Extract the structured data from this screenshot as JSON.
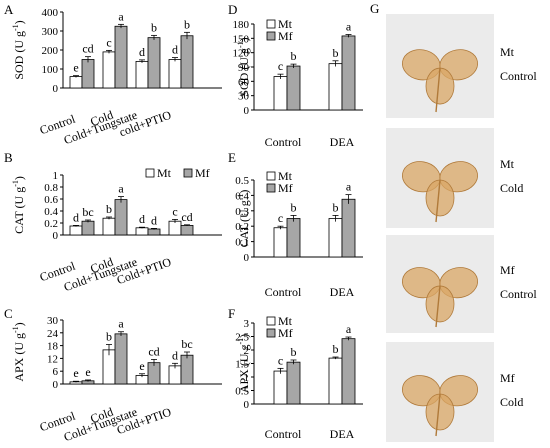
{
  "colors": {
    "mt": "#ffffff",
    "mf": "#a6a6a6",
    "leaf": "#d9a766",
    "leaf_edge": "#b07a3a",
    "photo_bg": "#ebebeb"
  },
  "chart_data": [
    {
      "panel": "A",
      "type": "bar",
      "ylabel": "SOD (U g",
      "categories": [
        "Control",
        "Cold",
        "Cold+Tungstate",
        "cold+PTIO"
      ],
      "ylim": [
        0,
        400
      ],
      "yticks": [
        "0",
        "100",
        "200",
        "300",
        "400"
      ],
      "series": [
        {
          "name": "Mt",
          "values": [
            60,
            190,
            140,
            150
          ],
          "errors": [
            5,
            8,
            8,
            10
          ],
          "letters": [
            "e",
            "c",
            "d",
            "d"
          ]
        },
        {
          "name": "Mf",
          "values": [
            150,
            325,
            265,
            275
          ],
          "errors": [
            15,
            10,
            12,
            18
          ],
          "letters": [
            "cd",
            "a",
            "b",
            "b"
          ]
        }
      ]
    },
    {
      "panel": "B",
      "type": "bar",
      "ylabel": "CAT (U g",
      "categories": [
        "Control",
        "Cold",
        "Cold+Tungstate",
        "Cold+PTIO"
      ],
      "ylim": [
        0,
        1
      ],
      "yticks": [
        "0",
        "0.2",
        "0.4",
        "0.6",
        "0.8",
        "1"
      ],
      "legend": [
        "Mt",
        "Mf"
      ],
      "series": [
        {
          "name": "Mt",
          "values": [
            0.15,
            0.28,
            0.12,
            0.23
          ],
          "errors": [
            0.01,
            0.02,
            0.01,
            0.03
          ],
          "letters": [
            "d",
            "b",
            "d",
            "c"
          ]
        },
        {
          "name": "Mf",
          "values": [
            0.23,
            0.59,
            0.1,
            0.16
          ],
          "errors": [
            0.02,
            0.05,
            0.01,
            0.01
          ],
          "letters": [
            "bc",
            "a",
            "d",
            "cd"
          ]
        }
      ]
    },
    {
      "panel": "C",
      "type": "bar",
      "ylabel": "APX (U g",
      "categories": [
        "Control",
        "Cold",
        "Cold+Tungstate",
        "Cold+PTIO"
      ],
      "ylim": [
        0,
        30
      ],
      "yticks": [
        "0",
        "6",
        "12",
        "18",
        "24",
        "30"
      ],
      "series": [
        {
          "name": "Mt",
          "values": [
            1.0,
            16,
            4,
            8.5
          ],
          "errors": [
            0.3,
            2.5,
            0.8,
            1.2
          ],
          "letters": [
            "e",
            "b",
            "e",
            "d"
          ]
        },
        {
          "name": "Mf",
          "values": [
            1.5,
            23.5,
            10,
            13.5
          ],
          "errors": [
            0.4,
            1.0,
            1.5,
            1.5
          ],
          "letters": [
            "e",
            "a",
            "cd",
            "bc"
          ]
        }
      ]
    },
    {
      "panel": "D",
      "type": "bar",
      "ylabel": "SOD (U g",
      "categories": [
        "Control",
        "DEA"
      ],
      "ylim": [
        0,
        180
      ],
      "yticks": [
        "0",
        "30",
        "60",
        "90",
        "120",
        "150",
        "180"
      ],
      "legend": [
        "Mt",
        "Mf"
      ],
      "series": [
        {
          "name": "Mt",
          "values": [
            70,
            97
          ],
          "errors": [
            5,
            6
          ],
          "letters": [
            "c",
            "b"
          ]
        },
        {
          "name": "Mf",
          "values": [
            92,
            155
          ],
          "errors": [
            4,
            3
          ],
          "letters": [
            "b",
            "a"
          ]
        }
      ]
    },
    {
      "panel": "E",
      "type": "bar",
      "ylabel": "CAT (U g",
      "categories": [
        "Control",
        "DEA"
      ],
      "ylim": [
        0,
        0.5
      ],
      "yticks": [
        "0",
        "0.1",
        "0.2",
        "0.3",
        "0.4",
        "0.5"
      ],
      "legend": [
        "Mt",
        "Mf"
      ],
      "series": [
        {
          "name": "Mt",
          "values": [
            0.19,
            0.25
          ],
          "errors": [
            0.01,
            0.02
          ],
          "letters": [
            "c",
            "b"
          ]
        },
        {
          "name": "Mf",
          "values": [
            0.25,
            0.375
          ],
          "errors": [
            0.02,
            0.03
          ],
          "letters": [
            "b",
            "a"
          ]
        }
      ]
    },
    {
      "panel": "F",
      "type": "bar",
      "ylabel": "APX (U g",
      "categories": [
        "Control",
        "DEA"
      ],
      "ylim": [
        0,
        3
      ],
      "yticks": [
        "0",
        "0.5",
        "1",
        "1.5",
        "2",
        "2.5",
        "3"
      ],
      "legend": [
        "Mt",
        "Mf"
      ],
      "series": [
        {
          "name": "Mt",
          "values": [
            1.22,
            1.7
          ],
          "errors": [
            0.1,
            0.04
          ],
          "letters": [
            "c",
            "b"
          ]
        },
        {
          "name": "Mf",
          "values": [
            1.55,
            2.42
          ],
          "errors": [
            0.08,
            0.06
          ],
          "letters": [
            "b",
            "a"
          ]
        }
      ]
    }
  ],
  "photos": {
    "panel": "G",
    "items": [
      {
        "line1": "Mt",
        "line2": "Control"
      },
      {
        "line1": "Mt",
        "line2": "Cold"
      },
      {
        "line1": "Mf",
        "line2": "Control"
      },
      {
        "line1": "Mf",
        "line2": "Cold"
      }
    ]
  }
}
